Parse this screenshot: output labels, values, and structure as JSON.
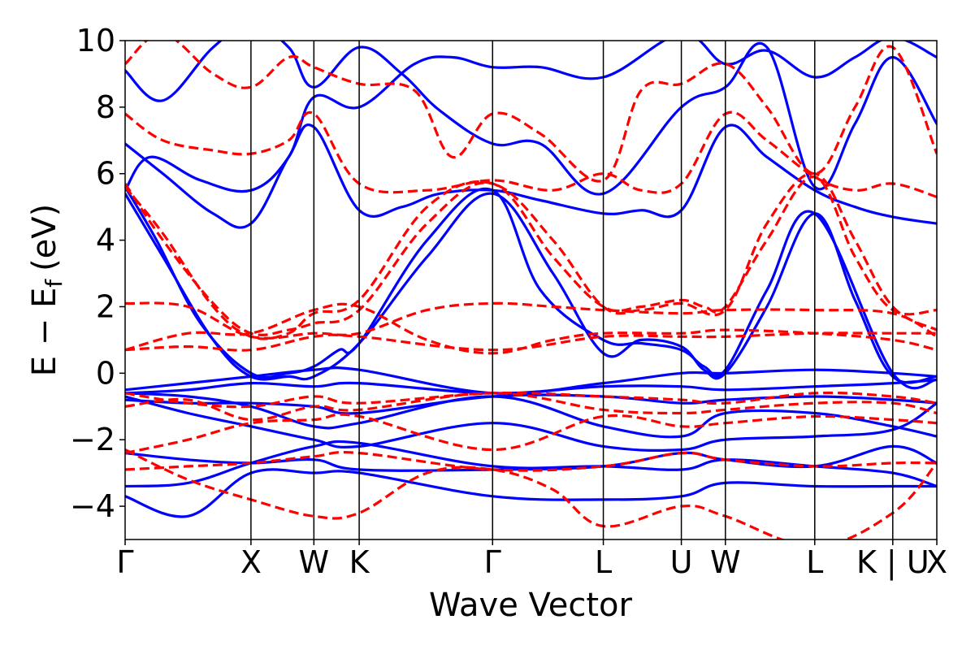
{
  "chart_data": {
    "type": "line",
    "title": "",
    "xlabel": "Wave Vector",
    "ylabel_main": "E − E",
    "ylabel_sub": "f",
    "ylabel_unit": "(eV)",
    "ylim": [
      -5,
      10
    ],
    "yticks": [
      -4,
      -2,
      0,
      2,
      4,
      6,
      8,
      10
    ],
    "ytick_labels": [
      "−4",
      "−2",
      "0",
      "2",
      "4",
      "6",
      "8",
      "10"
    ],
    "grid": false,
    "legend": "none",
    "kpath": {
      "x_range": [
        0,
        10
      ],
      "points": [
        {
          "label": "Γ",
          "x": 0.0
        },
        {
          "label": "X",
          "x": 1.0
        },
        {
          "label": "W",
          "x": 1.5
        },
        {
          "label": "K",
          "x": 1.86
        },
        {
          "label": "Γ",
          "x": 2.92
        },
        {
          "label": "L",
          "x": 3.8
        },
        {
          "label": "U",
          "x": 4.42
        },
        {
          "label": "W",
          "x": 4.77
        },
        {
          "label": "L",
          "x": 5.48
        },
        {
          "label": "K | U",
          "x": 6.1
        },
        {
          "label": "X",
          "x": 6.45
        }
      ]
    },
    "colors": {
      "solid": "#0000ff",
      "dashed": "#ff0000"
    },
    "series": [
      {
        "style": "solid",
        "x": [
          0,
          0.5,
          1.0,
          1.5,
          1.86,
          2.92,
          3.8,
          4.42,
          4.77,
          5.48,
          6.1,
          6.45
        ],
        "y": [
          -3.4,
          -3.3,
          -2.7,
          -2.2,
          -2.1,
          -2.8,
          -2.8,
          -2.9,
          -2.6,
          -2.8,
          -3.0,
          -3.4
        ]
      },
      {
        "style": "solid",
        "x": [
          0,
          0.5,
          1.0,
          1.5,
          1.86,
          2.92,
          3.8,
          4.42,
          4.77,
          5.48,
          6.1,
          6.45
        ],
        "y": [
          -2.4,
          -2.6,
          -2.7,
          -2.6,
          -2.9,
          -2.9,
          -2.8,
          -2.4,
          -2.6,
          -2.8,
          -2.2,
          -2.7
        ]
      },
      {
        "style": "solid",
        "x": [
          0,
          0.5,
          1.0,
          1.5,
          1.86,
          2.92,
          3.8,
          4.42,
          4.77,
          5.48,
          6.1,
          6.45
        ],
        "y": [
          -3.7,
          -4.3,
          -3.0,
          -3.0,
          -3.0,
          -3.7,
          -3.8,
          -3.7,
          -3.3,
          -3.4,
          -3.4,
          -3.4
        ]
      },
      {
        "style": "solid",
        "x": [
          0,
          0.5,
          1.0,
          1.5,
          1.86,
          2.92,
          3.8,
          4.42,
          4.77,
          5.48,
          6.1,
          6.45
        ],
        "y": [
          -0.6,
          -0.7,
          -1.0,
          -1.6,
          -1.5,
          -0.7,
          -1.6,
          -1.9,
          -1.2,
          -1.2,
          -1.6,
          -1.9
        ]
      },
      {
        "style": "solid",
        "x": [
          0,
          0.5,
          1.0,
          1.5,
          1.86,
          2.92,
          3.8,
          4.42,
          4.77,
          5.48,
          6.1,
          6.45
        ],
        "y": [
          -0.6,
          -0.5,
          -0.3,
          -0.4,
          -0.3,
          -0.6,
          -0.4,
          -0.4,
          -0.5,
          -0.4,
          -0.3,
          -0.2
        ]
      },
      {
        "style": "solid",
        "x": [
          0,
          0.5,
          1.0,
          1.5,
          1.86,
          2.92,
          3.8,
          4.42,
          4.77,
          5.48,
          6.1,
          6.45
        ],
        "y": [
          -0.8,
          -0.9,
          -0.9,
          -1.0,
          -1.2,
          -0.7,
          -0.7,
          -0.9,
          -0.8,
          -0.7,
          -0.8,
          -0.9
        ]
      },
      {
        "style": "solid",
        "x": [
          0,
          0.5,
          1.0,
          1.5,
          1.86,
          2.92,
          3.8,
          4.42,
          4.77,
          5.48,
          6.1,
          6.45
        ],
        "y": [
          -0.5,
          -0.3,
          -0.1,
          0.1,
          0.1,
          -0.6,
          -0.3,
          0.0,
          0.0,
          0.1,
          0.0,
          -0.1
        ]
      },
      {
        "style": "solid",
        "x": [
          0,
          0.5,
          1.0,
          1.5,
          1.86,
          2.92,
          3.8,
          4.42,
          4.77,
          5.48,
          6.1,
          6.45
        ],
        "y": [
          -0.7,
          -1.2,
          -1.6,
          -2.0,
          -2.2,
          -1.5,
          -2.2,
          -2.3,
          -2.0,
          -1.9,
          -1.7,
          -0.9
        ]
      },
      {
        "style": "solid",
        "x": [
          0,
          0.3,
          0.7,
          1.0,
          1.3,
          1.5,
          1.86,
          2.4,
          2.92,
          3.4,
          3.8,
          4.1,
          4.42,
          4.6,
          4.77,
          5.1,
          5.48,
          5.8,
          6.1,
          6.45
        ],
        "y": [
          5.4,
          3.5,
          1.0,
          -0.1,
          -0.1,
          -0.1,
          0.9,
          3.5,
          5.4,
          3.0,
          0.6,
          1.0,
          0.8,
          0.1,
          0.0,
          2.0,
          4.8,
          2.2,
          -0.1,
          -0.1
        ]
      },
      {
        "style": "solid",
        "x": [
          0,
          0.25,
          0.6,
          1.0,
          1.3,
          1.5,
          1.7,
          1.86,
          2.4,
          2.92,
          3.3,
          3.8,
          4.1,
          4.42,
          4.6,
          4.77,
          5.1,
          5.48,
          6.1,
          6.45
        ],
        "y": [
          5.6,
          4.0,
          1.5,
          0.0,
          0.0,
          0.2,
          0.7,
          0.9,
          4.0,
          5.5,
          2.5,
          1.0,
          0.9,
          0.7,
          0.2,
          0.1,
          2.5,
          4.8,
          0.0,
          -0.2
        ]
      },
      {
        "style": "solid",
        "x": [
          0,
          0.2,
          0.6,
          1.0,
          1.3,
          1.5,
          1.86,
          2.3,
          2.6,
          2.92,
          3.3,
          3.8,
          4.42,
          4.77,
          5.1,
          5.48,
          5.8,
          6.1,
          6.45
        ],
        "y": [
          5.5,
          6.5,
          5.8,
          5.5,
          6.5,
          8.3,
          8.0,
          9.3,
          9.5,
          9.2,
          9.2,
          8.9,
          10.2,
          9.3,
          9.7,
          8.9,
          9.5,
          10.1,
          9.5
        ]
      },
      {
        "style": "solid",
        "x": [
          0,
          0.3,
          0.7,
          1.0,
          1.3,
          1.5,
          1.86,
          2.2,
          2.5,
          2.92,
          3.3,
          3.8,
          4.1,
          4.42,
          4.77,
          5.1,
          5.48,
          5.8,
          6.1,
          6.45
        ],
        "y": [
          6.9,
          6.0,
          4.8,
          4.5,
          6.5,
          7.4,
          4.9,
          5.0,
          5.4,
          5.5,
          5.2,
          4.8,
          4.9,
          4.9,
          7.4,
          6.5,
          5.5,
          5.0,
          4.7,
          4.5
        ]
      },
      {
        "style": "solid",
        "x": [
          0,
          0.3,
          0.7,
          1.0,
          1.3,
          1.5,
          1.86,
          2.2,
          2.5,
          2.92,
          3.3,
          3.8,
          4.42,
          4.77,
          5.1,
          5.48,
          5.8,
          6.1,
          6.45
        ],
        "y": [
          9.1,
          8.2,
          9.8,
          10.5,
          9.8,
          8.6,
          9.8,
          9.0,
          7.9,
          6.9,
          6.9,
          5.4,
          8.0,
          8.6,
          9.8,
          5.6,
          7.5,
          9.5,
          7.5
        ]
      },
      {
        "style": "dashed",
        "x": [
          0,
          0.3,
          0.7,
          1.0,
          1.3,
          1.5,
          1.86,
          2.4,
          2.92,
          3.4,
          3.8,
          4.1,
          4.42,
          4.6,
          4.77,
          5.1,
          5.48,
          5.8,
          6.1,
          6.45
        ],
        "y": [
          5.7,
          4.0,
          2.1,
          1.2,
          1.3,
          1.5,
          1.9,
          4.5,
          5.7,
          3.5,
          2.0,
          2.0,
          2.2,
          2.0,
          2.0,
          4.0,
          5.9,
          3.5,
          1.9,
          1.9
        ]
      },
      {
        "style": "dashed",
        "x": [
          0,
          0.3,
          0.7,
          1.0,
          1.3,
          1.5,
          1.86,
          2.4,
          2.92,
          3.4,
          3.8,
          4.1,
          4.42,
          4.77,
          5.1,
          5.48,
          5.8,
          6.1,
          6.45
        ],
        "y": [
          5.6,
          4.2,
          2.0,
          1.1,
          1.2,
          1.8,
          2.2,
          5.0,
          5.7,
          4.0,
          2.0,
          1.9,
          2.1,
          1.9,
          4.5,
          6.0,
          4.0,
          2.0,
          1.3
        ]
      },
      {
        "style": "dashed",
        "x": [
          0,
          0.5,
          1.0,
          1.5,
          1.86,
          2.4,
          2.92,
          3.4,
          3.8,
          4.42,
          4.77,
          5.48,
          6.1,
          6.45
        ],
        "y": [
          2.1,
          2.0,
          1.1,
          1.2,
          1.2,
          1.9,
          2.1,
          2.0,
          1.9,
          1.8,
          1.9,
          1.9,
          1.8,
          1.1
        ]
      },
      {
        "style": "dashed",
        "x": [
          0,
          0.5,
          1.0,
          1.5,
          1.86,
          2.4,
          2.92,
          3.4,
          3.8,
          4.42,
          4.77,
          5.48,
          6.1,
          6.45
        ],
        "y": [
          0.7,
          1.2,
          1.2,
          1.9,
          2.0,
          1.0,
          0.6,
          1.0,
          1.2,
          1.2,
          1.3,
          1.2,
          1.0,
          0.7
        ]
      },
      {
        "style": "dashed",
        "x": [
          0,
          0.5,
          1.0,
          1.5,
          1.86,
          2.92,
          3.8,
          4.42,
          4.77,
          5.48,
          6.1,
          6.45
        ],
        "y": [
          0.7,
          0.8,
          0.7,
          1.1,
          1.1,
          0.7,
          1.1,
          1.1,
          1.1,
          1.2,
          1.2,
          1.2
        ]
      },
      {
        "style": "dashed",
        "x": [
          0,
          0.3,
          0.7,
          1.0,
          1.3,
          1.5,
          1.86,
          2.4,
          2.92,
          3.4,
          3.8,
          4.1,
          4.42,
          4.77,
          5.1,
          5.48,
          5.8,
          6.1,
          6.45
        ],
        "y": [
          7.8,
          7.0,
          6.7,
          6.6,
          7.0,
          7.8,
          5.7,
          5.5,
          5.8,
          5.5,
          6.0,
          5.5,
          5.7,
          7.8,
          7.0,
          5.9,
          5.5,
          5.7,
          5.3
        ]
      },
      {
        "style": "dashed",
        "x": [
          0,
          0.3,
          0.7,
          1.0,
          1.3,
          1.5,
          1.86,
          2.3,
          2.6,
          2.92,
          3.3,
          3.8,
          4.1,
          4.42,
          4.77,
          5.1,
          5.48,
          5.8,
          6.1,
          6.45
        ],
        "y": [
          9.3,
          10.2,
          9.0,
          8.6,
          9.5,
          9.2,
          8.7,
          8.5,
          6.5,
          7.8,
          7.2,
          5.8,
          8.5,
          8.7,
          9.3,
          8.0,
          6.0,
          8.0,
          9.8,
          6.6
        ]
      },
      {
        "style": "dashed",
        "x": [
          0,
          0.5,
          1.0,
          1.5,
          1.86,
          2.92,
          3.8,
          4.42,
          4.77,
          5.48,
          6.1,
          6.45
        ],
        "y": [
          -1.0,
          -0.8,
          -1.4,
          -1.0,
          -1.1,
          -0.6,
          -1.1,
          -1.2,
          -1.1,
          -0.9,
          -0.9,
          -1.2
        ]
      },
      {
        "style": "dashed",
        "x": [
          0,
          0.5,
          1.0,
          1.5,
          1.86,
          2.92,
          3.8,
          4.42,
          4.77,
          5.48,
          6.1,
          6.45
        ],
        "y": [
          -2.4,
          -2.0,
          -1.5,
          -1.4,
          -1.3,
          -2.3,
          -1.3,
          -1.6,
          -1.5,
          -1.3,
          -1.4,
          -1.5
        ]
      },
      {
        "style": "dashed",
        "x": [
          0,
          0.5,
          1.0,
          1.5,
          1.86,
          2.92,
          3.8,
          4.42,
          4.77,
          5.48,
          6.1,
          6.45
        ],
        "y": [
          -2.9,
          -2.8,
          -2.7,
          -2.5,
          -2.4,
          -2.9,
          -2.8,
          -2.4,
          -2.6,
          -2.8,
          -2.7,
          -2.7
        ]
      },
      {
        "style": "dashed",
        "x": [
          0,
          0.5,
          1.0,
          1.5,
          1.86,
          2.4,
          2.92,
          3.4,
          3.8,
          4.42,
          4.77,
          5.48,
          6.1,
          6.45
        ],
        "y": [
          -2.3,
          -3.2,
          -3.8,
          -4.3,
          -4.2,
          -3.0,
          -2.9,
          -3.5,
          -4.6,
          -4.0,
          -4.3,
          -5.2,
          -4.2,
          -2.7
        ]
      },
      {
        "style": "dashed",
        "x": [
          0,
          0.5,
          1.0,
          1.5,
          1.86,
          2.92,
          3.8,
          4.42,
          4.77,
          5.48,
          6.1,
          6.45
        ],
        "y": [
          -0.6,
          -0.9,
          -1.0,
          -0.7,
          -0.9,
          -0.6,
          -0.7,
          -0.8,
          -0.9,
          -0.6,
          -0.7,
          -0.9
        ]
      }
    ]
  }
}
